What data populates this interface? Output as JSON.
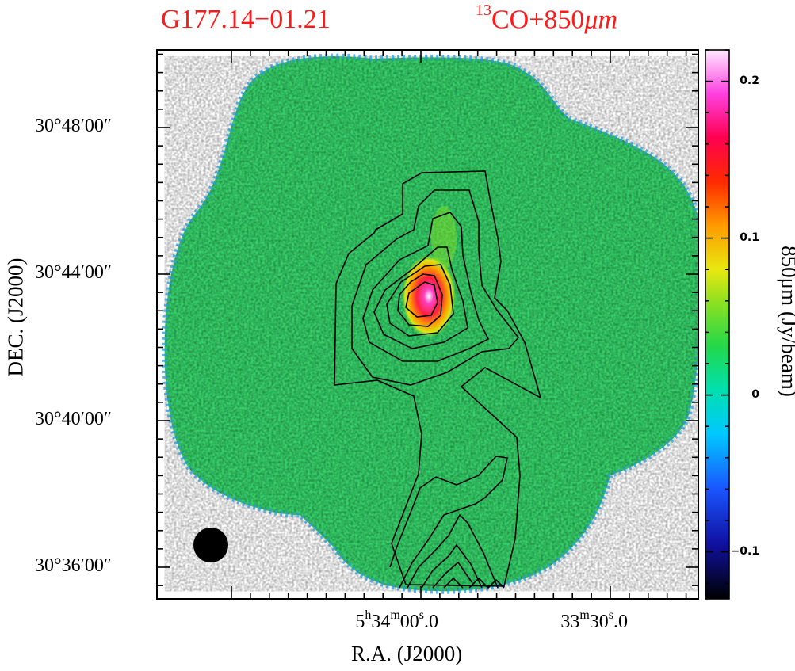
{
  "title_left": "G177.14−01.21",
  "title_right_sup": "13",
  "title_right_main": "CO+850",
  "title_right_unit": "μm",
  "chart_data": {
    "type": "heatmap",
    "description_axes": "sky image with contour overlay",
    "xlabel": "R.A.  (J2000)",
    "ylabel": "DEC.  (J2000)",
    "colorbar_label": "850μm  (Jy/beam)",
    "colorbar_range": [
      -0.13,
      0.22
    ],
    "colorbar_ticks": [
      {
        "value": 0.2,
        "label": "0.2"
      },
      {
        "value": 0.1,
        "label": "0.1"
      },
      {
        "value": 0.0,
        "label": "0"
      },
      {
        "value": -0.1,
        "label": "−0.1"
      }
    ],
    "y_ticks": [
      {
        "label": "30°48′00″",
        "dec_arcmin": 48
      },
      {
        "label": "30°44′00″",
        "dec_arcmin": 44
      },
      {
        "label": "30°40′00″",
        "dec_arcmin": 40
      },
      {
        "label": "30°36′00″",
        "dec_arcmin": 36
      }
    ],
    "x_ticks": [
      {
        "h": "5",
        "m": "34",
        "s": "00",
        "frac": ".0",
        "ra_sec_offset": 0
      },
      {
        "h": "",
        "m": "33",
        "s": "30",
        "frac": ".0",
        "ra_sec_offset": -30
      }
    ],
    "contour_levels": 7,
    "peak_850um": {
      "ra_sec_offset": -2,
      "dec_arcmin": 42.8,
      "value": 0.22
    },
    "beam": "filled circle, lower-left"
  }
}
